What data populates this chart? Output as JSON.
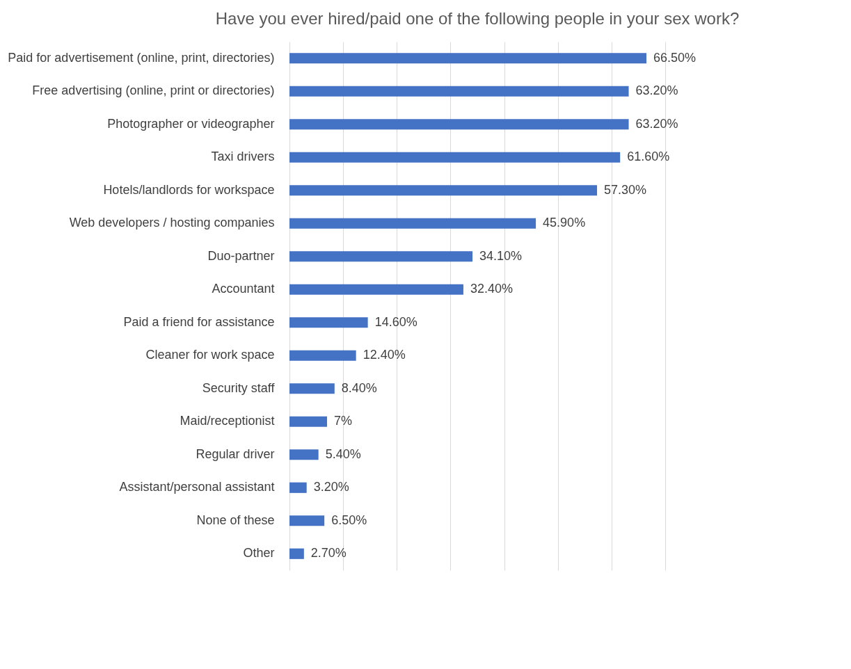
{
  "chart_data": {
    "type": "bar",
    "orientation": "horizontal",
    "title": "Have you ever hired/paid one of the following people in your sex work?",
    "categories": [
      "Paid for advertisement (online, print, directories)",
      "Free advertising (online, print or directories)",
      "Photographer or videographer",
      "Taxi drivers",
      "Hotels/landlords for workspace",
      "Web developers / hosting companies",
      "Duo-partner",
      "Accountant",
      "Paid a friend for assistance",
      "Cleaner for work space",
      "Security staff",
      "Maid/receptionist",
      "Regular driver",
      "Assistant/personal assistant",
      "None of these",
      "Other"
    ],
    "values": [
      66.5,
      63.2,
      63.2,
      61.6,
      57.3,
      45.9,
      34.1,
      32.4,
      14.6,
      12.4,
      8.4,
      7,
      5.4,
      3.2,
      6.5,
      2.7
    ],
    "value_labels": [
      "66.50%",
      "63.20%",
      "63.20%",
      "61.60%",
      "57.30%",
      "45.90%",
      "34.10%",
      "32.40%",
      "14.60%",
      "12.40%",
      "8.40%",
      "7%",
      "5.40%",
      "3.20%",
      "6.50%",
      "2.70%"
    ],
    "color": "#4472c4",
    "xlim": [
      0,
      70
    ],
    "xticks": [
      {
        "value": 0,
        "label": null
      },
      {
        "value": 10,
        "label": null
      },
      {
        "value": 20,
        "label": null
      },
      {
        "value": 30,
        "label": null
      },
      {
        "value": 40,
        "label": null
      },
      {
        "value": 50,
        "label": null
      },
      {
        "value": 60,
        "label": null
      },
      {
        "value": 70,
        "label": null
      }
    ],
    "grid": "x",
    "tick_labels": "y"
  }
}
